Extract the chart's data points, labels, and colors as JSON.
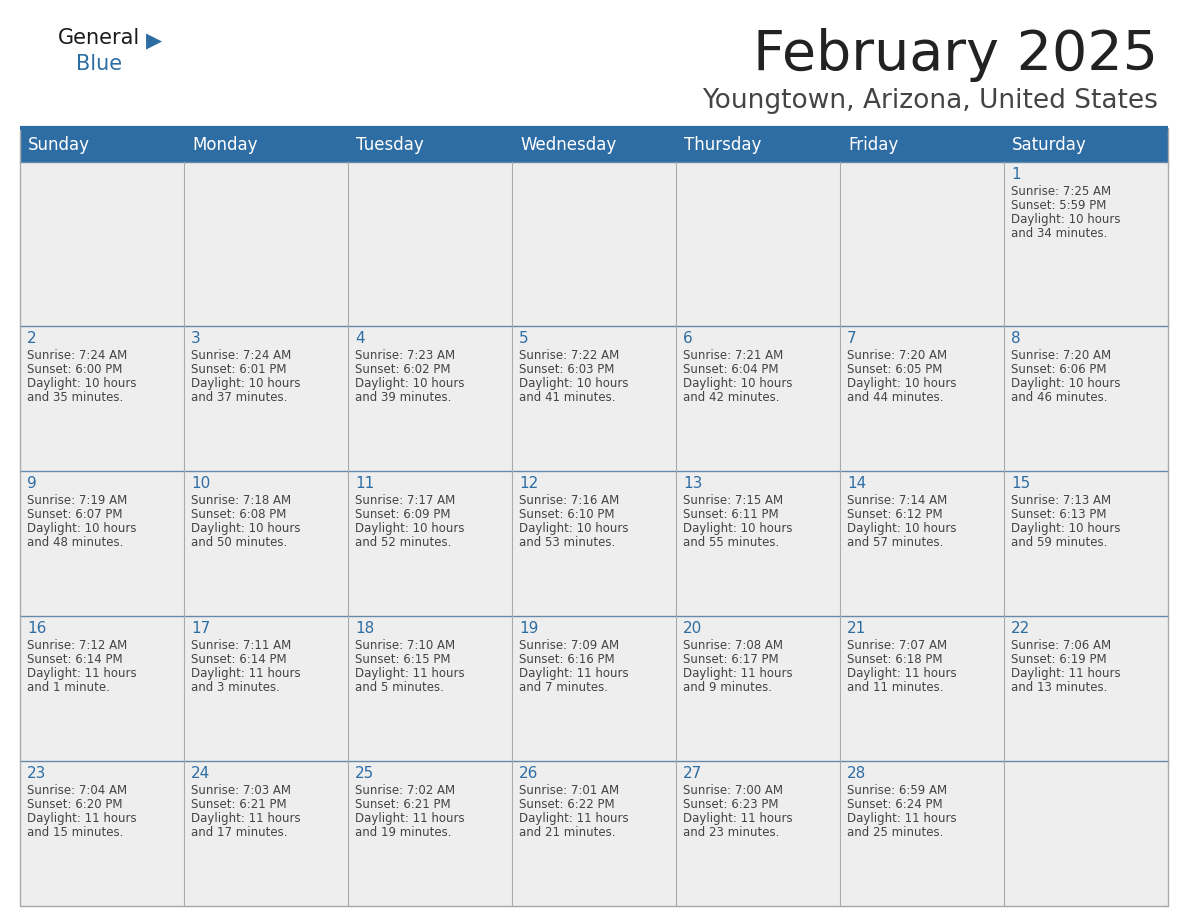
{
  "title": "February 2025",
  "subtitle": "Youngtown, Arizona, United States",
  "header_bg": "#2D6DA4",
  "header_text": "#FFFFFF",
  "cell_bg_light": "#EEEEEE",
  "border_color": "#AAAAAA",
  "day_headers": [
    "Sunday",
    "Monday",
    "Tuesday",
    "Wednesday",
    "Thursday",
    "Friday",
    "Saturday"
  ],
  "title_color": "#222222",
  "subtitle_color": "#444444",
  "day_num_color": "#2D6DA4",
  "info_color": "#444444",
  "days": [
    {
      "day": 1,
      "col": 6,
      "row": 0,
      "sunrise": "7:25 AM",
      "sunset": "5:59 PM",
      "daylight": "10 hours\nand 34 minutes."
    },
    {
      "day": 2,
      "col": 0,
      "row": 1,
      "sunrise": "7:24 AM",
      "sunset": "6:00 PM",
      "daylight": "10 hours\nand 35 minutes."
    },
    {
      "day": 3,
      "col": 1,
      "row": 1,
      "sunrise": "7:24 AM",
      "sunset": "6:01 PM",
      "daylight": "10 hours\nand 37 minutes."
    },
    {
      "day": 4,
      "col": 2,
      "row": 1,
      "sunrise": "7:23 AM",
      "sunset": "6:02 PM",
      "daylight": "10 hours\nand 39 minutes."
    },
    {
      "day": 5,
      "col": 3,
      "row": 1,
      "sunrise": "7:22 AM",
      "sunset": "6:03 PM",
      "daylight": "10 hours\nand 41 minutes."
    },
    {
      "day": 6,
      "col": 4,
      "row": 1,
      "sunrise": "7:21 AM",
      "sunset": "6:04 PM",
      "daylight": "10 hours\nand 42 minutes."
    },
    {
      "day": 7,
      "col": 5,
      "row": 1,
      "sunrise": "7:20 AM",
      "sunset": "6:05 PM",
      "daylight": "10 hours\nand 44 minutes."
    },
    {
      "day": 8,
      "col": 6,
      "row": 1,
      "sunrise": "7:20 AM",
      "sunset": "6:06 PM",
      "daylight": "10 hours\nand 46 minutes."
    },
    {
      "day": 9,
      "col": 0,
      "row": 2,
      "sunrise": "7:19 AM",
      "sunset": "6:07 PM",
      "daylight": "10 hours\nand 48 minutes."
    },
    {
      "day": 10,
      "col": 1,
      "row": 2,
      "sunrise": "7:18 AM",
      "sunset": "6:08 PM",
      "daylight": "10 hours\nand 50 minutes."
    },
    {
      "day": 11,
      "col": 2,
      "row": 2,
      "sunrise": "7:17 AM",
      "sunset": "6:09 PM",
      "daylight": "10 hours\nand 52 minutes."
    },
    {
      "day": 12,
      "col": 3,
      "row": 2,
      "sunrise": "7:16 AM",
      "sunset": "6:10 PM",
      "daylight": "10 hours\nand 53 minutes."
    },
    {
      "day": 13,
      "col": 4,
      "row": 2,
      "sunrise": "7:15 AM",
      "sunset": "6:11 PM",
      "daylight": "10 hours\nand 55 minutes."
    },
    {
      "day": 14,
      "col": 5,
      "row": 2,
      "sunrise": "7:14 AM",
      "sunset": "6:12 PM",
      "daylight": "10 hours\nand 57 minutes."
    },
    {
      "day": 15,
      "col": 6,
      "row": 2,
      "sunrise": "7:13 AM",
      "sunset": "6:13 PM",
      "daylight": "10 hours\nand 59 minutes."
    },
    {
      "day": 16,
      "col": 0,
      "row": 3,
      "sunrise": "7:12 AM",
      "sunset": "6:14 PM",
      "daylight": "11 hours\nand 1 minute."
    },
    {
      "day": 17,
      "col": 1,
      "row": 3,
      "sunrise": "7:11 AM",
      "sunset": "6:14 PM",
      "daylight": "11 hours\nand 3 minutes."
    },
    {
      "day": 18,
      "col": 2,
      "row": 3,
      "sunrise": "7:10 AM",
      "sunset": "6:15 PM",
      "daylight": "11 hours\nand 5 minutes."
    },
    {
      "day": 19,
      "col": 3,
      "row": 3,
      "sunrise": "7:09 AM",
      "sunset": "6:16 PM",
      "daylight": "11 hours\nand 7 minutes."
    },
    {
      "day": 20,
      "col": 4,
      "row": 3,
      "sunrise": "7:08 AM",
      "sunset": "6:17 PM",
      "daylight": "11 hours\nand 9 minutes."
    },
    {
      "day": 21,
      "col": 5,
      "row": 3,
      "sunrise": "7:07 AM",
      "sunset": "6:18 PM",
      "daylight": "11 hours\nand 11 minutes."
    },
    {
      "day": 22,
      "col": 6,
      "row": 3,
      "sunrise": "7:06 AM",
      "sunset": "6:19 PM",
      "daylight": "11 hours\nand 13 minutes."
    },
    {
      "day": 23,
      "col": 0,
      "row": 4,
      "sunrise": "7:04 AM",
      "sunset": "6:20 PM",
      "daylight": "11 hours\nand 15 minutes."
    },
    {
      "day": 24,
      "col": 1,
      "row": 4,
      "sunrise": "7:03 AM",
      "sunset": "6:21 PM",
      "daylight": "11 hours\nand 17 minutes."
    },
    {
      "day": 25,
      "col": 2,
      "row": 4,
      "sunrise": "7:02 AM",
      "sunset": "6:21 PM",
      "daylight": "11 hours\nand 19 minutes."
    },
    {
      "day": 26,
      "col": 3,
      "row": 4,
      "sunrise": "7:01 AM",
      "sunset": "6:22 PM",
      "daylight": "11 hours\nand 21 minutes."
    },
    {
      "day": 27,
      "col": 4,
      "row": 4,
      "sunrise": "7:00 AM",
      "sunset": "6:23 PM",
      "daylight": "11 hours\nand 23 minutes."
    },
    {
      "day": 28,
      "col": 5,
      "row": 4,
      "sunrise": "6:59 AM",
      "sunset": "6:24 PM",
      "daylight": "11 hours\nand 25 minutes."
    }
  ],
  "logo_general_color": "#1a1a1a",
  "logo_blue_color": "#2D6DA4",
  "logo_triangle_color": "#2D6DA4"
}
